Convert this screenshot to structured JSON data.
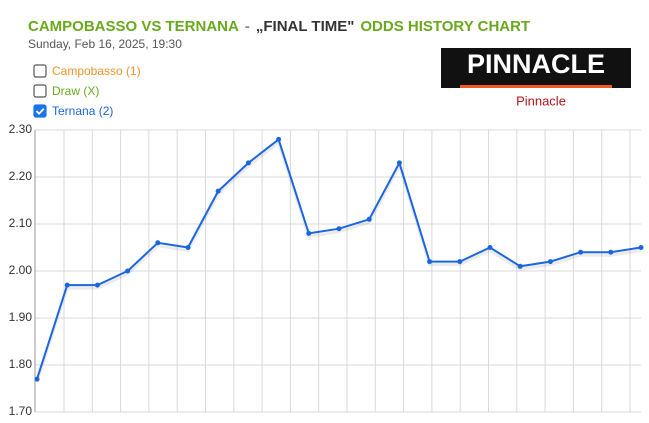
{
  "chart_data": {
    "type": "line",
    "title_parts": [
      {
        "text": "CAMPOBASSO VS TERNANA",
        "color": "#6aa81e"
      },
      {
        "text": "-",
        "color": "#888888"
      },
      {
        "text": "„FINAL TIME\"",
        "color": "#333333"
      },
      {
        "text": "ODDS HISTORY CHART",
        "color": "#6aa81e"
      }
    ],
    "subtitle": "Sunday, Feb 16, 2025, 19:30",
    "legend": [
      {
        "label": "Campobasso (1)",
        "color": "#f0932b",
        "checked": false
      },
      {
        "label": "Draw (X)",
        "color": "#6aa81e",
        "checked": false
      },
      {
        "label": "Ternana (2)",
        "color": "#1a66e0",
        "checked": true
      }
    ],
    "logo": {
      "text": "PINNACLE",
      "caption": "Pinnacle"
    },
    "series": [
      {
        "name": "Ternana (2)",
        "color": "#1a66e0",
        "values": [
          1.77,
          1.97,
          1.97,
          2.0,
          2.06,
          2.05,
          2.17,
          2.23,
          2.28,
          2.08,
          2.09,
          2.11,
          2.23,
          2.02,
          2.02,
          2.05,
          2.01,
          2.02,
          2.04,
          2.04,
          2.05
        ]
      }
    ],
    "ylim": [
      1.7,
      2.3
    ],
    "yticks": [
      {
        "value": 1.7,
        "label": "1.70"
      },
      {
        "value": 1.8,
        "label": "1.80"
      },
      {
        "value": 1.9,
        "label": "1.90"
      },
      {
        "value": 2.0,
        "label": "2.00"
      },
      {
        "value": 2.1,
        "label": "2.10"
      },
      {
        "value": 2.2,
        "label": "2.20"
      },
      {
        "value": 2.3,
        "label": "2.30"
      }
    ],
    "grid": true
  }
}
